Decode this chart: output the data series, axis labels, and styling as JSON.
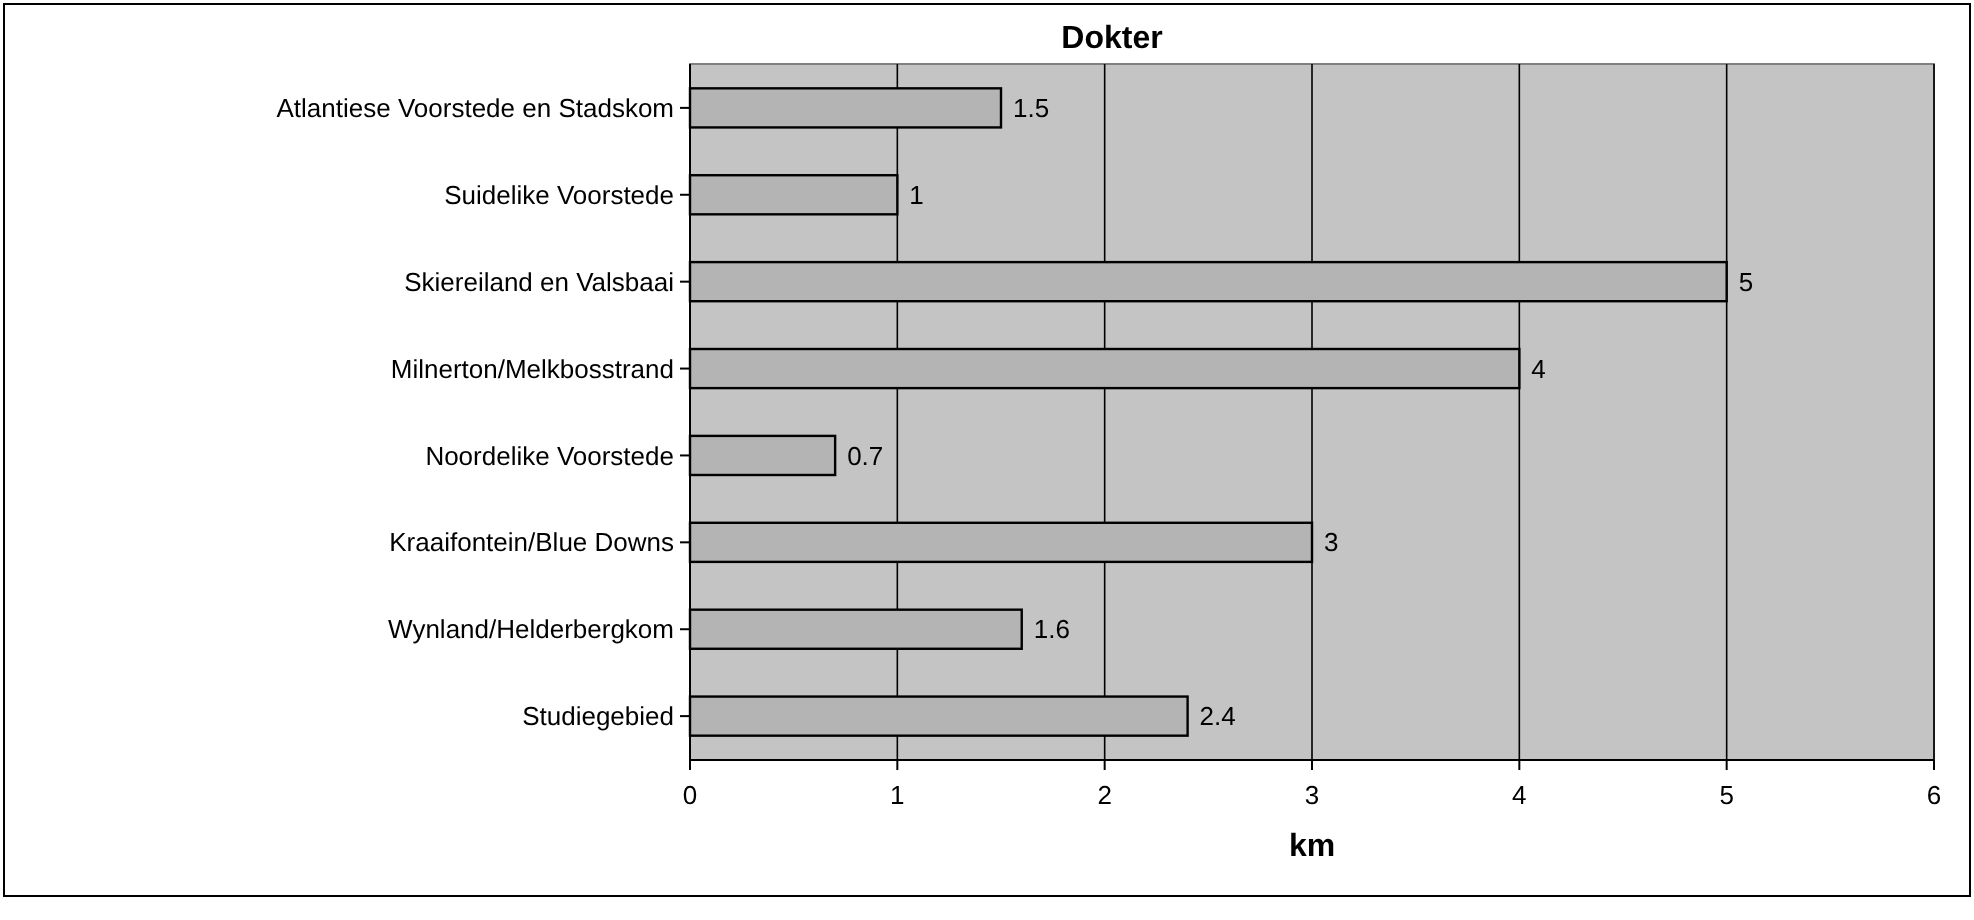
{
  "chart_data": {
    "type": "bar",
    "orientation": "horizontal",
    "title": "Dokter",
    "xlabel": "km",
    "categories": [
      "Atlantiese Voorstede en Stadskom",
      "Suidelike Voorstede",
      "Skiereiland en Valsbaai",
      "Milnerton/Melkbosstrand",
      "Noordelike Voorstede",
      "Kraaifontein/Blue Downs",
      "Wynland/Helderbergkom",
      "Studiegebied"
    ],
    "values": [
      1.5,
      1,
      5,
      4,
      0.7,
      3,
      1.6,
      2.4
    ],
    "color": "#b4b4b4",
    "xlim": [
      0,
      6
    ],
    "xticks": [
      0,
      1,
      2,
      3,
      4,
      5,
      6
    ],
    "grid": "x",
    "data_labels": true
  }
}
